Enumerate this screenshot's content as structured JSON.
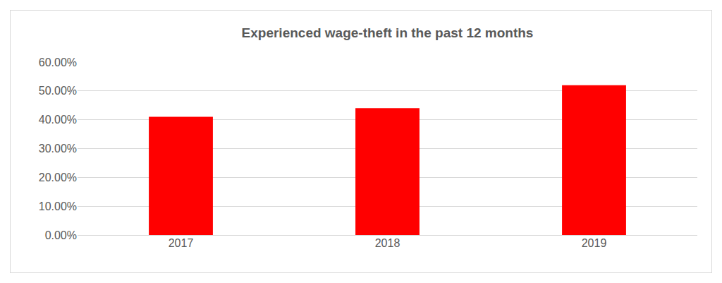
{
  "chart_data": {
    "type": "bar",
    "title": "Experienced wage-theft in the past 12 months",
    "categories": [
      "2017",
      "2018",
      "2019"
    ],
    "values": [
      41,
      44,
      52
    ],
    "color": "#ff0000",
    "ylim": [
      0,
      60
    ],
    "yticks": [
      {
        "value": 0,
        "label": "0.00%"
      },
      {
        "value": 10,
        "label": "10.00%"
      },
      {
        "value": 20,
        "label": "20.00%"
      },
      {
        "value": 30,
        "label": "30.00%"
      },
      {
        "value": 40,
        "label": "40.00%"
      },
      {
        "value": 50,
        "label": "50.00%"
      },
      {
        "value": 60,
        "label": "60.00%"
      }
    ],
    "grid": true
  }
}
